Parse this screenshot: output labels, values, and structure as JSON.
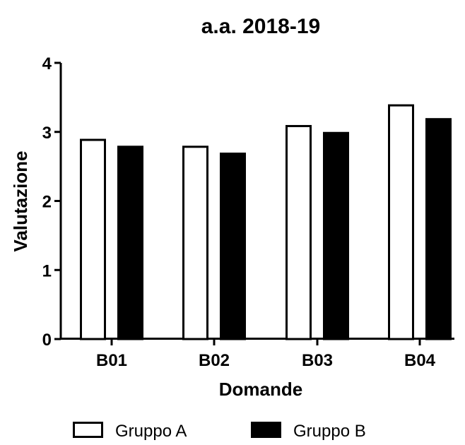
{
  "chart_data": {
    "type": "bar",
    "title": "a.a. 2018-19",
    "xlabel": "Domande",
    "ylabel": "Valutazione",
    "categories": [
      "B01",
      "B02",
      "B03",
      "B04"
    ],
    "ylim": [
      0,
      4
    ],
    "yticks": [
      "0",
      "1",
      "2",
      "3",
      "4"
    ],
    "grid": false,
    "legend_position": "bottom",
    "series": [
      {
        "name": "Gruppo A",
        "values": [
          2.9,
          2.8,
          3.1,
          3.4
        ],
        "fill": "#ffffff",
        "stroke": "#000000"
      },
      {
        "name": "Gruppo B",
        "values": [
          2.8,
          2.7,
          3.0,
          3.2
        ],
        "fill": "#000000",
        "stroke": "#000000"
      }
    ]
  }
}
